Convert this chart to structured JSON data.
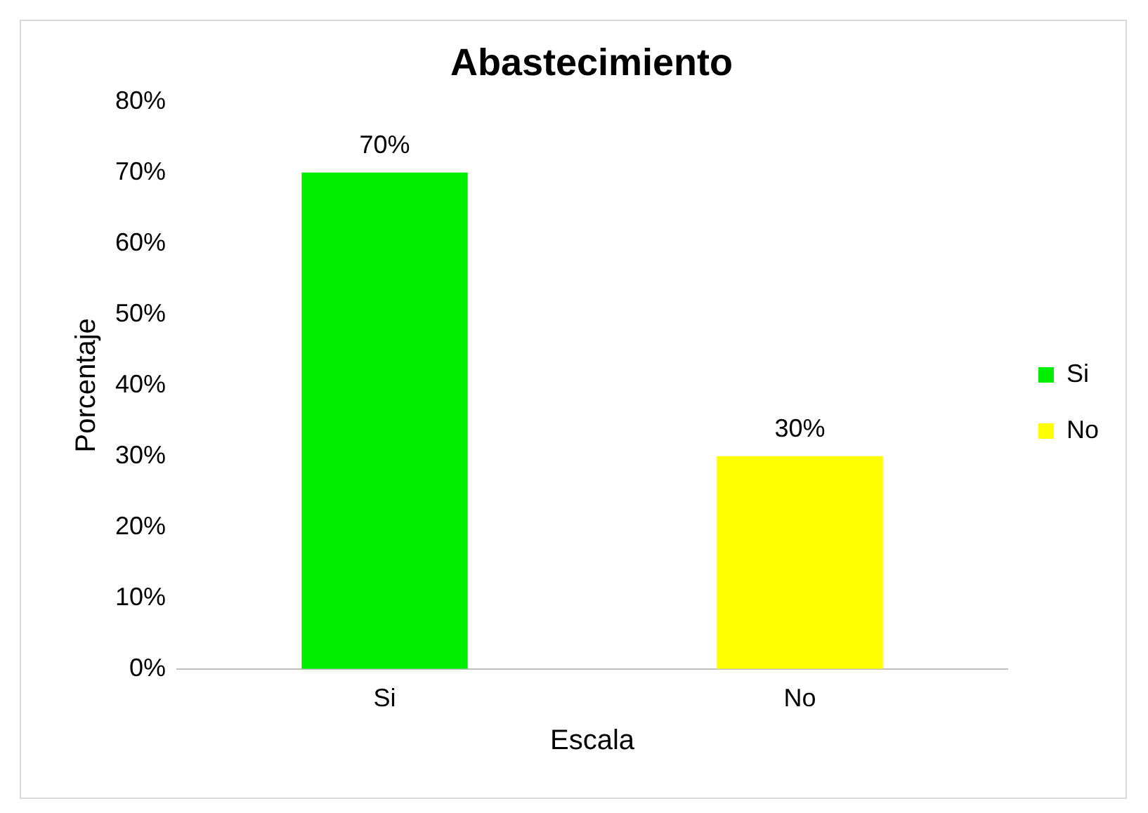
{
  "chart_data": {
    "type": "bar",
    "title": "Abastecimiento",
    "xlabel": "Escala",
    "ylabel": "Porcentaje",
    "categories": [
      "Si",
      "No"
    ],
    "series": [
      {
        "name": "Si",
        "color": "#00ee00",
        "values": [
          70,
          null
        ],
        "value_labels": [
          "70%",
          null
        ]
      },
      {
        "name": "No",
        "color": "#ffff00",
        "values": [
          null,
          30
        ],
        "value_labels": [
          null,
          "30%"
        ]
      }
    ],
    "ylim": [
      0,
      80
    ],
    "yticks": [
      {
        "value": 0,
        "label": "0%"
      },
      {
        "value": 10,
        "label": "10%"
      },
      {
        "value": 20,
        "label": "20%"
      },
      {
        "value": 30,
        "label": "30%"
      },
      {
        "value": 40,
        "label": "40%"
      },
      {
        "value": 50,
        "label": "50%"
      },
      {
        "value": 60,
        "label": "60%"
      },
      {
        "value": 70,
        "label": "70%"
      },
      {
        "value": 80,
        "label": "80%"
      }
    ],
    "legend": "right"
  }
}
